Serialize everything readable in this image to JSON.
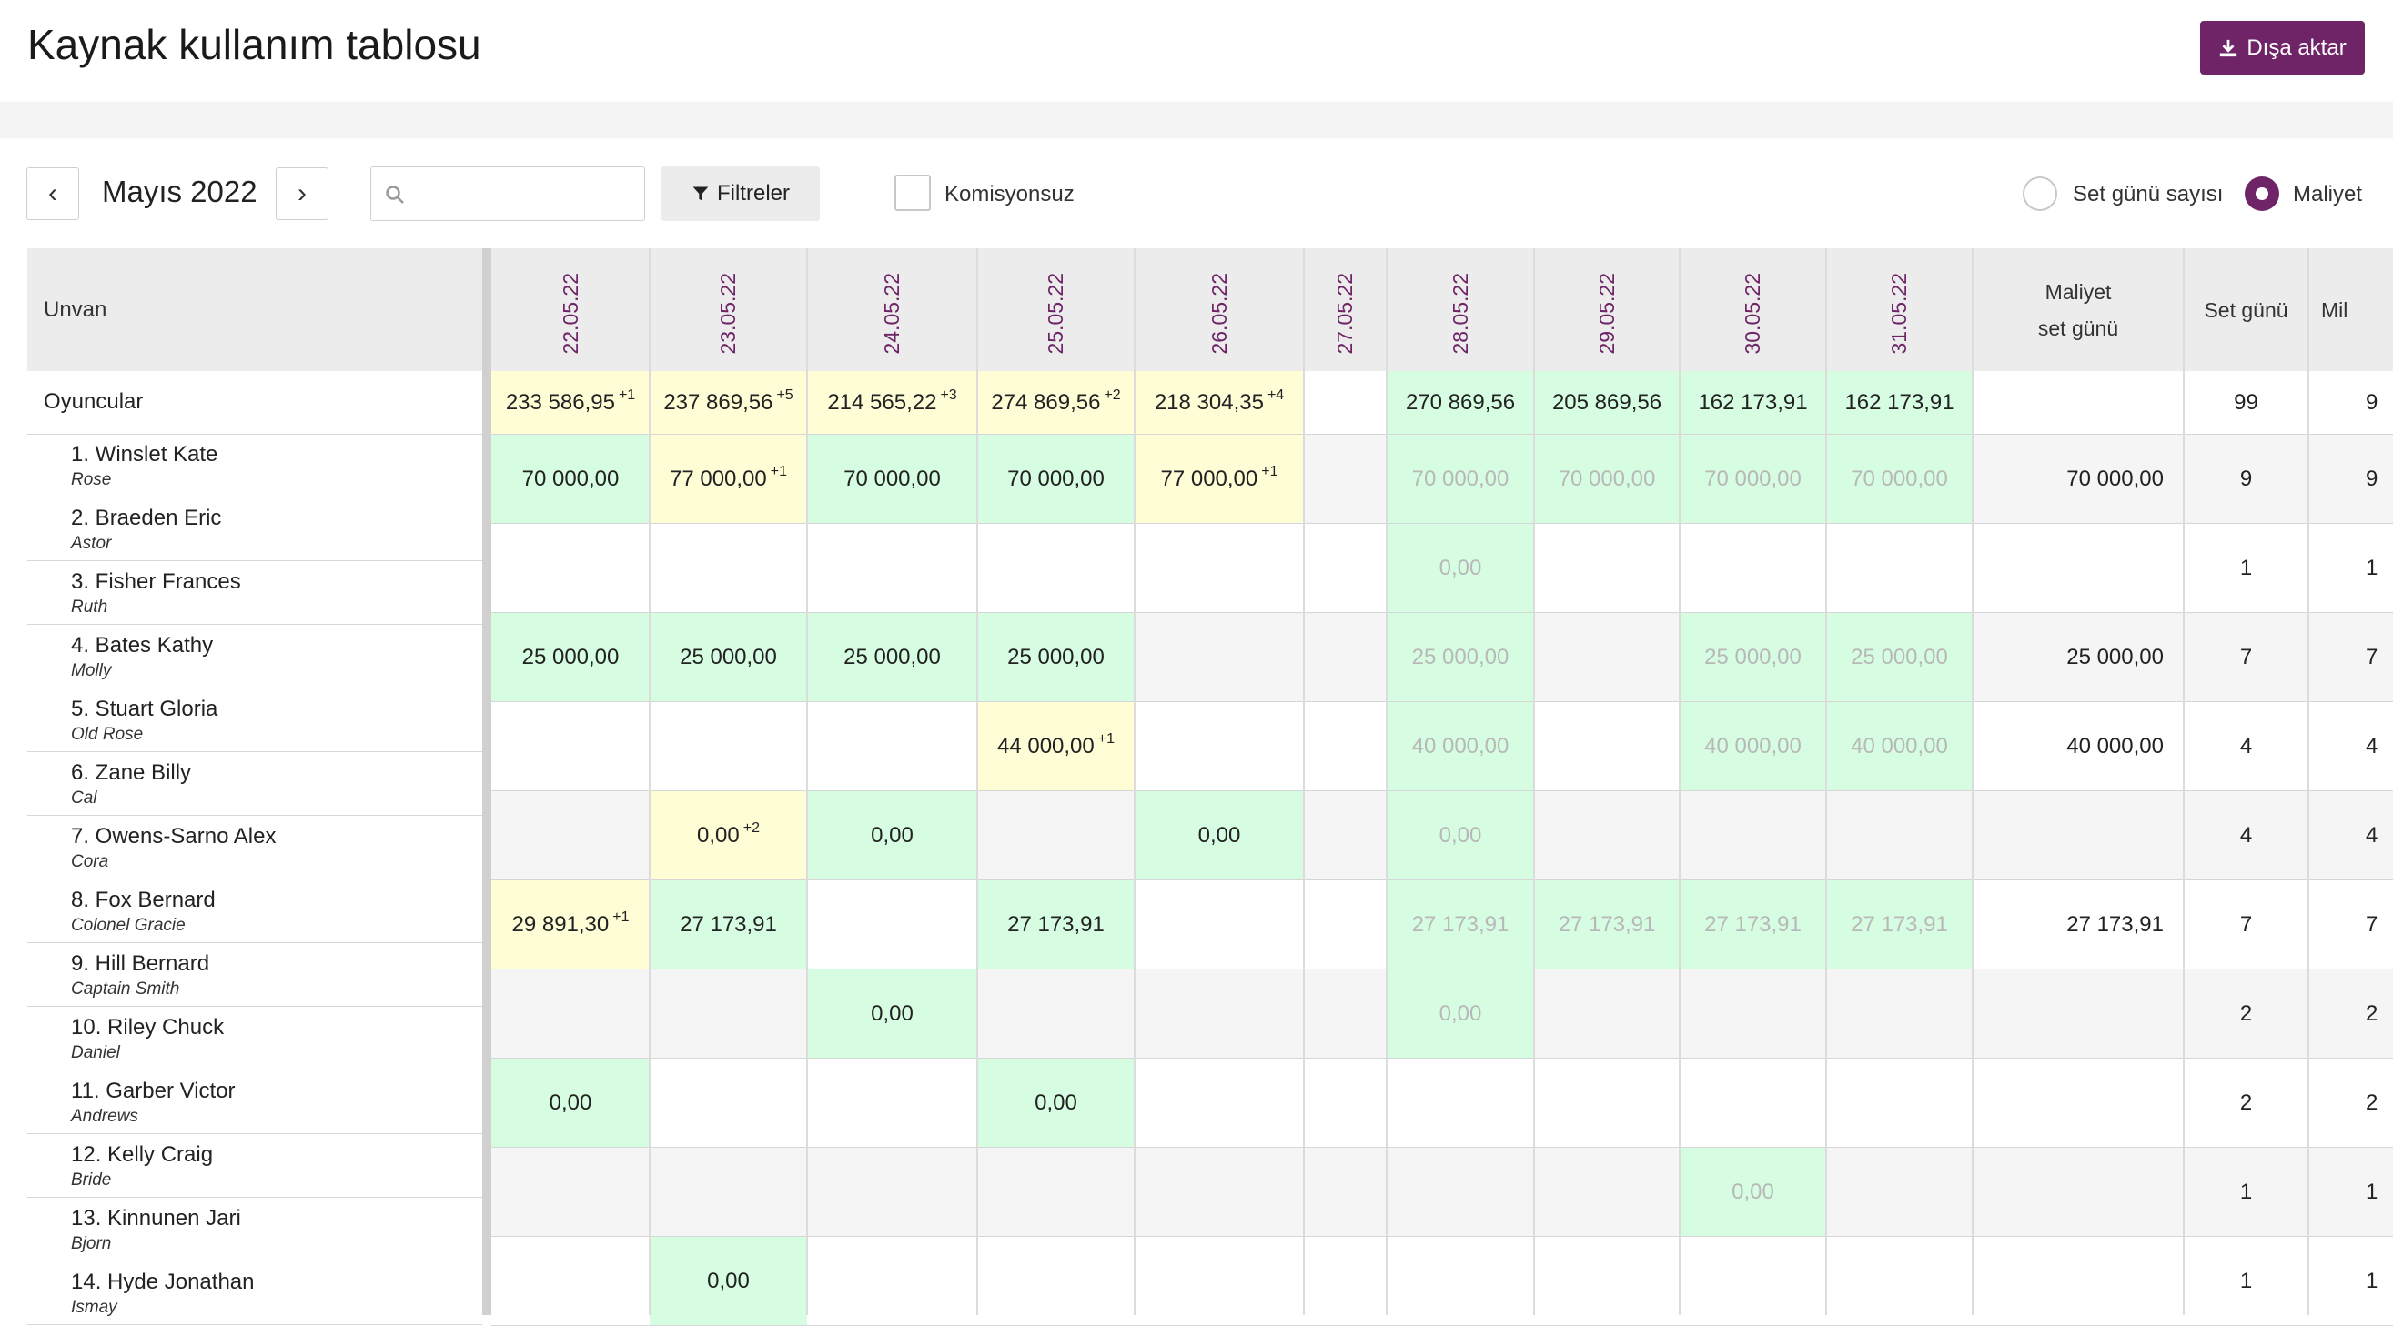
{
  "header": {
    "title": "Kaynak kullanım tablosu",
    "export_label": "Dışa aktar"
  },
  "toolbar": {
    "prev": "‹",
    "next": "›",
    "month": "Mayıs 2022",
    "search_placeholder": "",
    "filters_label": "Filtreler",
    "no_commission_label": "Komisyonsuz",
    "radio_set_days": "Set günü sayısı",
    "radio_cost": "Maliyet"
  },
  "table": {
    "col_unvan": "Unvan",
    "dates": [
      "22.05.22",
      "23.05.22",
      "24.05.22",
      "25.05.22",
      "26.05.22",
      "27.05.22",
      "28.05.22",
      "29.05.22",
      "30.05.22",
      "31.05.22"
    ],
    "col_cost_day_1": "Maliyet",
    "col_cost_day_2": "set günü",
    "col_set_days": "Set günü",
    "col_cut": "Mil",
    "group": {
      "label": "Oyuncular",
      "values": [
        "233 586,95",
        "237 869,56",
        "214 565,22",
        "274 869,56",
        "218 304,35",
        "",
        "270 869,56",
        "205 869,56",
        "162 173,91",
        "162 173,91"
      ],
      "sups": [
        "+1",
        "+5",
        "+3",
        "+2",
        "+4",
        "",
        "",
        "",
        "",
        ""
      ],
      "set_days": "99",
      "cut": "9"
    },
    "rows": [
      {
        "name": "1. Winslet Kate",
        "role": "Rose",
        "values": [
          "70 000,00",
          "77 000,00",
          "70 000,00",
          "70 000,00",
          "77 000,00",
          "",
          "70 000,00",
          "70 000,00",
          "70 000,00",
          "70 000,00"
        ],
        "sups": [
          "",
          "+1",
          "",
          "",
          "+1",
          "",
          "",
          "",
          "",
          ""
        ],
        "cost": "70 000,00",
        "set_days": "9",
        "cut": "9"
      },
      {
        "name": "2. Braeden Eric",
        "role": "Astor",
        "values": [
          "",
          "",
          "",
          "",
          "",
          "",
          "0,00",
          "",
          "",
          ""
        ],
        "sups": [
          "",
          "",
          "",
          "",
          "",
          "",
          "",
          "",
          "",
          ""
        ],
        "cost": "",
        "set_days": "1",
        "cut": "1"
      },
      {
        "name": "3. Fisher Frances",
        "role": "Ruth",
        "values": [
          "25 000,00",
          "25 000,00",
          "25 000,00",
          "25 000,00",
          "",
          "",
          "25 000,00",
          "",
          "25 000,00",
          "25 000,00"
        ],
        "sups": [
          "",
          "",
          "",
          "",
          "",
          "",
          "",
          "",
          "",
          ""
        ],
        "cost": "25 000,00",
        "set_days": "7",
        "cut": "7"
      },
      {
        "name": "4. Bates Kathy",
        "role": "Molly",
        "values": [
          "",
          "",
          "",
          "44 000,00",
          "",
          "",
          "40 000,00",
          "",
          "40 000,00",
          "40 000,00"
        ],
        "sups": [
          "",
          "",
          "",
          "+1",
          "",
          "",
          "",
          "",
          "",
          ""
        ],
        "cost": "40 000,00",
        "set_days": "4",
        "cut": "4"
      },
      {
        "name": "5. Stuart Gloria",
        "role": "Old Rose",
        "values": [
          "",
          "0,00",
          "0,00",
          "",
          "0,00",
          "",
          "0,00",
          "",
          "",
          ""
        ],
        "sups": [
          "",
          "+2",
          "",
          "",
          "",
          "",
          "",
          "",
          "",
          ""
        ],
        "cost": "",
        "set_days": "4",
        "cut": "4"
      },
      {
        "name": "6. Zane Billy",
        "role": "Cal",
        "values": [
          "29 891,30",
          "27 173,91",
          "",
          "27 173,91",
          "",
          "",
          "27 173,91",
          "27 173,91",
          "27 173,91",
          "27 173,91"
        ],
        "sups": [
          "+1",
          "",
          "",
          "",
          "",
          "",
          "",
          "",
          "",
          ""
        ],
        "cost": "27 173,91",
        "set_days": "7",
        "cut": "7"
      },
      {
        "name": "7. Owens-Sarno Alex",
        "role": "Cora",
        "values": [
          "",
          "",
          "0,00",
          "",
          "",
          "",
          "0,00",
          "",
          "",
          ""
        ],
        "sups": [
          "",
          "",
          "",
          "",
          "",
          "",
          "",
          "",
          "",
          ""
        ],
        "cost": "",
        "set_days": "2",
        "cut": "2"
      },
      {
        "name": "8. Fox Bernard",
        "role": "Colonel Gracie",
        "values": [
          "0,00",
          "",
          "",
          "0,00",
          "",
          "",
          "",
          "",
          "",
          ""
        ],
        "sups": [
          "",
          "",
          "",
          "",
          "",
          "",
          "",
          "",
          "",
          ""
        ],
        "cost": "",
        "set_days": "2",
        "cut": "2"
      },
      {
        "name": "9. Hill Bernard",
        "role": "Captain Smith",
        "values": [
          "",
          "",
          "",
          "",
          "",
          "",
          "",
          "",
          "0,00",
          ""
        ],
        "sups": [
          "",
          "",
          "",
          "",
          "",
          "",
          "",
          "",
          "",
          ""
        ],
        "cost": "",
        "set_days": "1",
        "cut": "1"
      },
      {
        "name": "10. Riley Chuck",
        "role": "Daniel",
        "values": [
          "",
          "0,00",
          "",
          "",
          "",
          "",
          "",
          "",
          "",
          ""
        ],
        "sups": [
          "",
          "",
          "",
          "",
          "",
          "",
          "",
          "",
          "",
          ""
        ],
        "cost": "",
        "set_days": "1",
        "cut": "1"
      },
      {
        "name": "11. Garber Victor",
        "role": "Andrews"
      },
      {
        "name": "12. Kelly Craig",
        "role": "Bride"
      },
      {
        "name": "13. Kinnunen Jari",
        "role": "Bjorn"
      },
      {
        "name": "14. Hyde Jonathan",
        "role": "Ismay"
      }
    ]
  },
  "colors": {
    "accent": "#6e2467",
    "green": "#d6fde1",
    "yellow": "#fefdd6",
    "header": "#ececec"
  }
}
